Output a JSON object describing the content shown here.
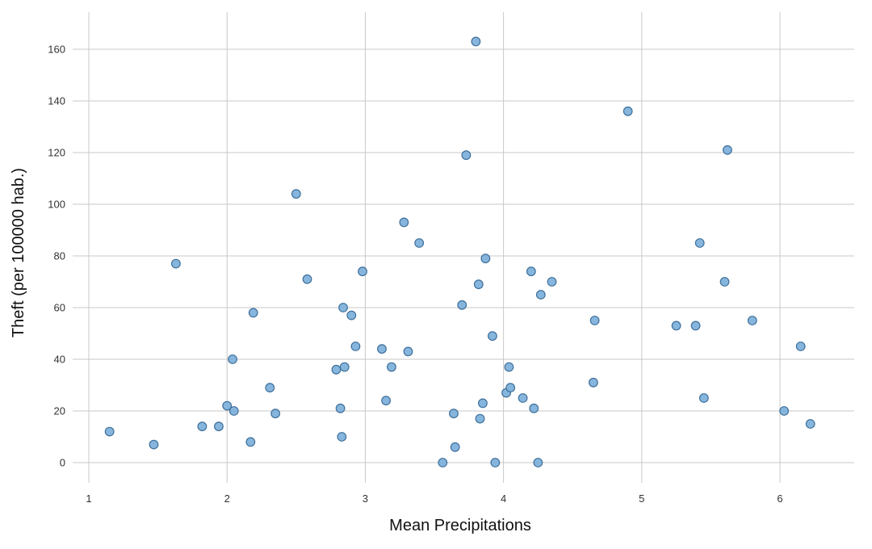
{
  "chart_data": {
    "type": "scatter",
    "xlabel": "Mean Precipitations",
    "ylabel": "Theft (per 100000 hab.)",
    "xlim": [
      1,
      6.55
    ],
    "ylim": [
      -12,
      175
    ],
    "x_ticks": [
      1,
      2,
      3,
      4,
      5,
      6
    ],
    "y_ticks": [
      0,
      20,
      40,
      60,
      80,
      100,
      120,
      140,
      160
    ],
    "grid": true,
    "point_color": "#7fb2db",
    "point_edge_color": "#3f6f9a",
    "points": [
      {
        "x": 1.15,
        "y": 12
      },
      {
        "x": 1.47,
        "y": 7
      },
      {
        "x": 1.63,
        "y": 77
      },
      {
        "x": 1.82,
        "y": 14
      },
      {
        "x": 1.94,
        "y": 14
      },
      {
        "x": 2.0,
        "y": 22
      },
      {
        "x": 2.04,
        "y": 40
      },
      {
        "x": 2.05,
        "y": 20
      },
      {
        "x": 2.17,
        "y": 8
      },
      {
        "x": 2.19,
        "y": 58
      },
      {
        "x": 2.31,
        "y": 29
      },
      {
        "x": 2.35,
        "y": 19
      },
      {
        "x": 2.5,
        "y": 104
      },
      {
        "x": 2.58,
        "y": 71
      },
      {
        "x": 2.79,
        "y": 36
      },
      {
        "x": 2.82,
        "y": 21
      },
      {
        "x": 2.83,
        "y": 10
      },
      {
        "x": 2.84,
        "y": 60
      },
      {
        "x": 2.85,
        "y": 37
      },
      {
        "x": 2.9,
        "y": 57
      },
      {
        "x": 2.93,
        "y": 45
      },
      {
        "x": 2.98,
        "y": 74
      },
      {
        "x": 3.12,
        "y": 44
      },
      {
        "x": 3.15,
        "y": 24
      },
      {
        "x": 3.19,
        "y": 37
      },
      {
        "x": 3.28,
        "y": 93
      },
      {
        "x": 3.31,
        "y": 43
      },
      {
        "x": 3.39,
        "y": 85
      },
      {
        "x": 3.56,
        "y": 0
      },
      {
        "x": 3.64,
        "y": 19
      },
      {
        "x": 3.65,
        "y": 6
      },
      {
        "x": 3.7,
        "y": 61
      },
      {
        "x": 3.73,
        "y": 119
      },
      {
        "x": 3.8,
        "y": 163
      },
      {
        "x": 3.82,
        "y": 69
      },
      {
        "x": 3.83,
        "y": 17
      },
      {
        "x": 3.85,
        "y": 23
      },
      {
        "x": 3.87,
        "y": 79
      },
      {
        "x": 3.92,
        "y": 49
      },
      {
        "x": 3.94,
        "y": 0
      },
      {
        "x": 4.02,
        "y": 27
      },
      {
        "x": 4.04,
        "y": 37
      },
      {
        "x": 4.05,
        "y": 29
      },
      {
        "x": 4.14,
        "y": 25
      },
      {
        "x": 4.2,
        "y": 74
      },
      {
        "x": 4.22,
        "y": 21
      },
      {
        "x": 4.25,
        "y": 0
      },
      {
        "x": 4.27,
        "y": 65
      },
      {
        "x": 4.35,
        "y": 70
      },
      {
        "x": 4.65,
        "y": 31
      },
      {
        "x": 4.66,
        "y": 55
      },
      {
        "x": 4.9,
        "y": 136
      },
      {
        "x": 5.25,
        "y": 53
      },
      {
        "x": 5.39,
        "y": 53
      },
      {
        "x": 5.42,
        "y": 85
      },
      {
        "x": 5.45,
        "y": 25
      },
      {
        "x": 5.6,
        "y": 70
      },
      {
        "x": 5.62,
        "y": 121
      },
      {
        "x": 5.8,
        "y": 55
      },
      {
        "x": 6.03,
        "y": 20
      },
      {
        "x": 6.15,
        "y": 45
      },
      {
        "x": 6.22,
        "y": 15
      }
    ]
  }
}
